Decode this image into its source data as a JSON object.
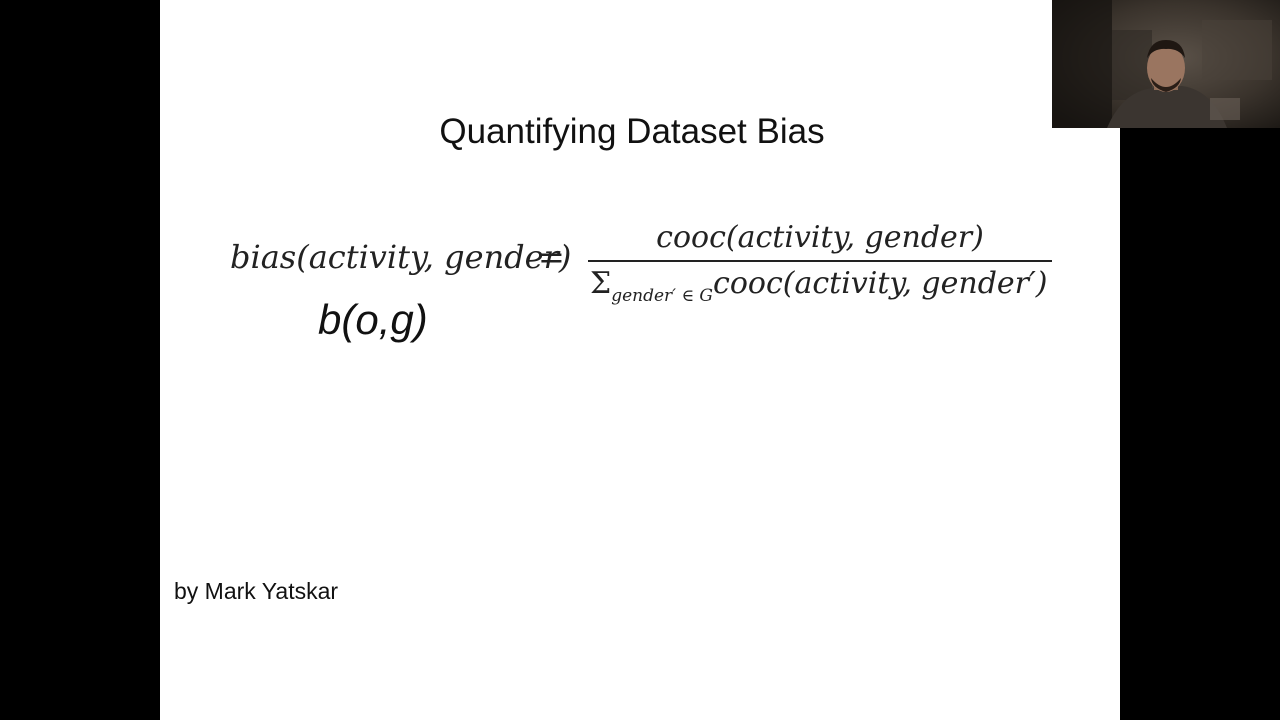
{
  "slide": {
    "title": "Quantifying Dataset Bias",
    "formula": {
      "lhs": "bias(activity, gender)",
      "equals": "=",
      "numerator": "cooc(activity, gender)",
      "denominator_sigma": "Σ",
      "denominator_subscript": "gender′ ∈ G",
      "denominator_term": "cooc(activity, gender′)"
    },
    "short_form": "b(o,g)",
    "author": "by Mark Yatskar"
  },
  "webcam": {
    "icon": "person-video-feed",
    "background_color": "#2a2520"
  }
}
